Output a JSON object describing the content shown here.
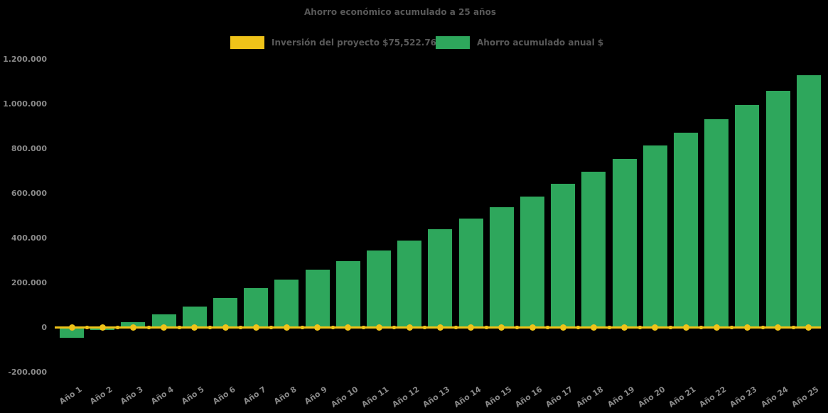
{
  "chart_data": {
    "type": "bar",
    "title": "Ahorro económico acumulado a 25 años",
    "background_color": "#000000",
    "title_color": "#595959",
    "axis_label_color": "#8a8a8a",
    "categories": [
      "Año 1",
      "Año 2",
      "Año 3",
      "Año 4",
      "Año 5",
      "Año 6",
      "Año 7",
      "Año 8",
      "Año 9",
      "Año 10",
      "Año 11",
      "Año 12",
      "Año 13",
      "Año 14",
      "Año 15",
      "Año 16",
      "Año 17",
      "Año 18",
      "Año 19",
      "Año 20",
      "Año 21",
      "Año 22",
      "Año 23",
      "Año 24",
      "Año 25"
    ],
    "series": [
      {
        "name": "Inversión del proyecto $75,522.76",
        "type": "line",
        "color": "#EFC319",
        "marker": "circle",
        "investment_value": 75522.76,
        "values": [
          0,
          0,
          0,
          0,
          0,
          0,
          0,
          0,
          0,
          0,
          0,
          0,
          0,
          0,
          0,
          0,
          0,
          0,
          0,
          0,
          0,
          0,
          0,
          0,
          0
        ]
      },
      {
        "name": "Ahorro acumulado anual $",
        "type": "bar",
        "color": "#2EA75C",
        "values": [
          -45000,
          -12000,
          25000,
          60000,
          95000,
          132000,
          175000,
          213000,
          258000,
          298000,
          344000,
          390000,
          440000,
          488000,
          537000,
          586000,
          642000,
          697000,
          755000,
          813000,
          872000,
          933000,
          996000,
          1060000,
          1129000
        ]
      }
    ],
    "xlabel": "",
    "ylabel": "",
    "y_axis": {
      "tick_labels": [
        "1.200.000",
        "1.000.000",
        "800.000",
        "600.000",
        "400.000",
        "200.000",
        "0",
        "-200.000"
      ],
      "tick_values": [
        1200000,
        1000000,
        800000,
        600000,
        400000,
        200000,
        0,
        -200000
      ]
    },
    "ylim": [
      -200000,
      1200000
    ],
    "grid": false,
    "legend_position": "top",
    "x_tick_rotation_deg": -34
  }
}
